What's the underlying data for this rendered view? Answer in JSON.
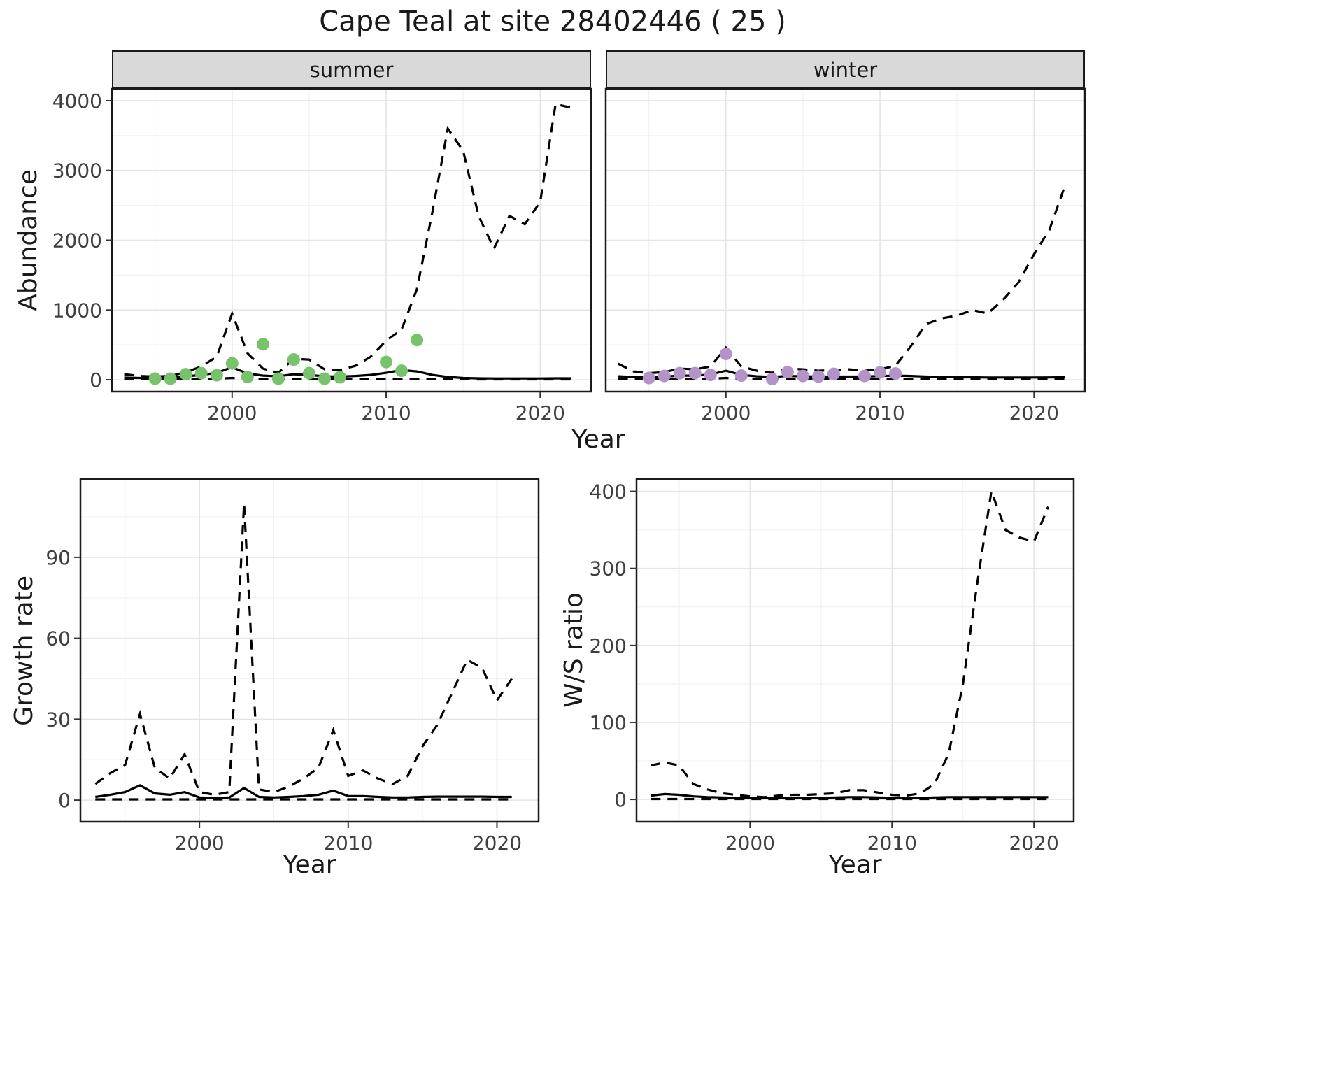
{
  "title": "Cape Teal at site 28402446 ( 25 )",
  "facets": [
    "summer",
    "winter"
  ],
  "axis_labels": {
    "abundance": "Abundance",
    "year_top": "Year",
    "growth_rate": "Growth rate",
    "ws_ratio": "W/S ratio",
    "year_bottom_left": "Year",
    "year_bottom_right": "Year"
  },
  "colors": {
    "summer_points": "#77C36B",
    "winter_points": "#B493C8",
    "line": "#000000",
    "strip_bg": "#D9D9D9",
    "grid_major": "#E5E5E5",
    "grid_minor": "#F2F2F2",
    "panel_border": "#1A1A1A",
    "tick_text": "#404040",
    "text": "#1A1A1A"
  },
  "chart_data": [
    {
      "id": "abundance-summer",
      "type": "line",
      "facet": "summer",
      "xlabel": "Year",
      "ylabel": "Abundance",
      "xlim": [
        1992.2,
        2023.3
      ],
      "ylim": [
        -170,
        4170
      ],
      "xticks": [
        2000,
        2010,
        2020
      ],
      "yticks": [
        0,
        1000,
        2000,
        3000,
        4000
      ],
      "grid": true,
      "x": [
        1993,
        1994,
        1995,
        1996,
        1997,
        1998,
        1999,
        2000,
        2001,
        2002,
        2003,
        2004,
        2005,
        2006,
        2007,
        2008,
        2009,
        2010,
        2011,
        2012,
        2013,
        2014,
        2015,
        2016,
        2017,
        2018,
        2019,
        2020,
        2021,
        2022
      ],
      "series": [
        {
          "name": "lower_ci",
          "style": "dashed",
          "values": [
            10,
            8,
            6,
            6,
            8,
            10,
            15,
            25,
            12,
            8,
            6,
            8,
            8,
            6,
            6,
            6,
            8,
            10,
            12,
            12,
            10,
            8,
            6,
            5,
            5,
            5,
            5,
            5,
            5,
            5
          ]
        },
        {
          "name": "upper_ci",
          "style": "dashed",
          "values": [
            80,
            55,
            45,
            55,
            110,
            190,
            330,
            950,
            380,
            160,
            100,
            300,
            290,
            150,
            140,
            200,
            330,
            560,
            720,
            1300,
            2400,
            3600,
            3280,
            2350,
            1880,
            2350,
            2230,
            2550,
            3950,
            3900
          ]
        },
        {
          "name": "fit",
          "style": "solid",
          "values": [
            30,
            25,
            25,
            30,
            50,
            70,
            100,
            180,
            90,
            60,
            50,
            80,
            70,
            50,
            45,
            55,
            70,
            100,
            140,
            120,
            70,
            40,
            25,
            20,
            18,
            18,
            18,
            18,
            20,
            20
          ]
        }
      ],
      "points": {
        "name": "observed_counts",
        "color_key": "summer_points",
        "x": [
          1995,
          1996,
          1997,
          1998,
          1999,
          2000,
          2001,
          2002,
          2003,
          2004,
          2005,
          2006,
          2007,
          2010,
          2011,
          2012
        ],
        "y": [
          15,
          15,
          80,
          95,
          65,
          235,
          40,
          510,
          15,
          290,
          95,
          15,
          35,
          255,
          130,
          570
        ]
      }
    },
    {
      "id": "abundance-winter",
      "type": "line",
      "facet": "winter",
      "xlabel": "Year",
      "ylabel": "Abundance",
      "xlim": [
        1992.2,
        2023.3
      ],
      "ylim": [
        -170,
        4170
      ],
      "xticks": [
        2000,
        2010,
        2020
      ],
      "yticks": [
        0,
        1000,
        2000,
        3000,
        4000
      ],
      "grid": true,
      "x": [
        1993,
        1994,
        1995,
        1996,
        1997,
        1998,
        1999,
        2000,
        2001,
        2002,
        2003,
        2004,
        2005,
        2006,
        2007,
        2008,
        2009,
        2010,
        2011,
        2012,
        2013,
        2014,
        2015,
        2016,
        2017,
        2018,
        2019,
        2020,
        2021,
        2022
      ],
      "series": [
        {
          "name": "lower_ci",
          "style": "dashed",
          "values": [
            15,
            10,
            8,
            10,
            12,
            12,
            15,
            25,
            15,
            10,
            8,
            10,
            10,
            8,
            8,
            8,
            8,
            10,
            10,
            10,
            8,
            8,
            6,
            6,
            6,
            6,
            6,
            6,
            6,
            6
          ]
        },
        {
          "name": "upper_ci",
          "style": "dashed",
          "values": [
            230,
            120,
            95,
            110,
            160,
            150,
            190,
            460,
            190,
            130,
            100,
            160,
            150,
            130,
            140,
            150,
            130,
            150,
            200,
            480,
            800,
            880,
            920,
            1000,
            950,
            1150,
            1400,
            1800,
            2150,
            2780
          ]
        },
        {
          "name": "fit",
          "style": "solid",
          "values": [
            50,
            40,
            35,
            45,
            60,
            60,
            75,
            130,
            70,
            50,
            40,
            55,
            50,
            45,
            45,
            45,
            45,
            55,
            60,
            55,
            45,
            40,
            35,
            35,
            32,
            32,
            32,
            32,
            33,
            35
          ]
        }
      ],
      "points": {
        "name": "observed_counts",
        "color_key": "winter_points",
        "x": [
          1995,
          1996,
          1997,
          1998,
          1999,
          2000,
          2001,
          2003,
          2004,
          2005,
          2006,
          2007,
          2009,
          2010,
          2011
        ],
        "y": [
          25,
          55,
          95,
          95,
          70,
          370,
          60,
          10,
          110,
          55,
          45,
          85,
          55,
          105,
          90
        ]
      }
    },
    {
      "id": "growth-rate",
      "type": "line",
      "xlabel": "Year",
      "ylabel": "Growth rate",
      "xlim": [
        1992,
        2022.8
      ],
      "ylim": [
        -8,
        119
      ],
      "xticks": [
        2000,
        2010,
        2020
      ],
      "yticks": [
        0,
        30,
        60,
        90
      ],
      "grid": true,
      "x": [
        1993,
        1994,
        1995,
        1996,
        1997,
        1998,
        1999,
        2000,
        2001,
        2002,
        2003,
        2004,
        2005,
        2006,
        2007,
        2008,
        2009,
        2010,
        2011,
        2012,
        2013,
        2014,
        2015,
        2016,
        2017,
        2018,
        2019,
        2020,
        2021
      ],
      "series": [
        {
          "name": "lower_ci",
          "style": "dashed",
          "values": [
            0.3,
            0.3,
            0.3,
            0.3,
            0.3,
            0.3,
            0.3,
            0.3,
            0.3,
            0.3,
            0.3,
            0.3,
            0.3,
            0.3,
            0.3,
            0.3,
            0.3,
            0.3,
            0.3,
            0.3,
            0.3,
            0.3,
            0.3,
            0.3,
            0.3,
            0.3,
            0.3,
            0.3,
            0.3
          ]
        },
        {
          "name": "upper_ci",
          "style": "dashed",
          "values": [
            6,
            10,
            13,
            32,
            12,
            8,
            17,
            3,
            2,
            3,
            110,
            4,
            3,
            5,
            8,
            12,
            26,
            9,
            11,
            8,
            6,
            9,
            20,
            28,
            40,
            52,
            49,
            37,
            45
          ]
        },
        {
          "name": "fit",
          "style": "solid",
          "values": [
            1.2,
            2,
            3,
            5.5,
            2.5,
            2,
            3,
            1,
            0.8,
            1,
            4.5,
            1.2,
            1,
            1.2,
            1.5,
            2,
            3.5,
            1.5,
            1.5,
            1.2,
            1,
            1,
            1.2,
            1.3,
            1.3,
            1.3,
            1.3,
            1.2,
            1.2
          ]
        }
      ]
    },
    {
      "id": "ws-ratio",
      "type": "line",
      "xlabel": "Year",
      "ylabel": "W/S ratio",
      "xlim": [
        1992,
        2022.8
      ],
      "ylim": [
        -29,
        416
      ],
      "xticks": [
        2000,
        2010,
        2020
      ],
      "yticks": [
        0,
        100,
        200,
        300,
        400
      ],
      "grid": true,
      "x": [
        1993,
        1994,
        1995,
        1996,
        1997,
        1998,
        1999,
        2000,
        2001,
        2002,
        2003,
        2004,
        2005,
        2006,
        2007,
        2008,
        2009,
        2010,
        2011,
        2012,
        2013,
        2014,
        2015,
        2016,
        2017,
        2018,
        2019,
        2020,
        2021
      ],
      "series": [
        {
          "name": "lower_ci",
          "style": "dashed",
          "values": [
            0.5,
            0.5,
            0.5,
            0.5,
            0.5,
            0.5,
            0.5,
            0.5,
            0.5,
            0.5,
            0.5,
            0.5,
            0.5,
            0.5,
            0.5,
            0.5,
            0.5,
            0.5,
            0.5,
            0.5,
            0.5,
            0.5,
            0.5,
            0.5,
            0.5,
            0.5,
            0.5,
            0.5,
            0.5
          ]
        },
        {
          "name": "upper_ci",
          "style": "dashed",
          "values": [
            44,
            48,
            44,
            20,
            13,
            8,
            6,
            4,
            3,
            5,
            6,
            6,
            7,
            8,
            12,
            12,
            9,
            6,
            5,
            8,
            20,
            60,
            150,
            280,
            400,
            350,
            340,
            335,
            380
          ]
        },
        {
          "name": "fit",
          "style": "solid",
          "values": [
            5,
            7,
            6,
            4,
            3,
            2.5,
            2,
            2,
            1.5,
            2,
            2,
            2,
            2,
            2.5,
            3,
            3,
            2.5,
            2,
            2,
            2,
            2.5,
            3,
            3,
            3,
            3,
            3,
            3,
            3,
            3
          ]
        }
      ]
    }
  ]
}
